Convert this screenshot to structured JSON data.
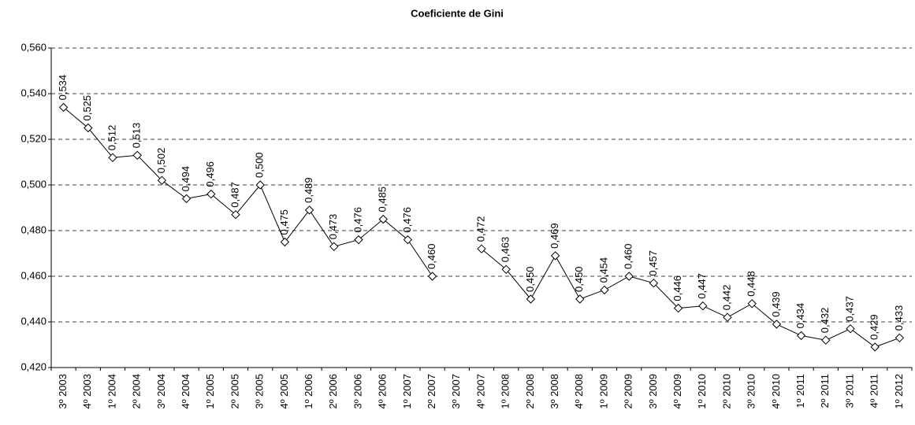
{
  "chart_data": {
    "type": "line",
    "title": "Coeficiente de Gini",
    "categories": [
      "3º 2003",
      "4º 2003",
      "1º 2004",
      "2º 2004",
      "3º 2004",
      "4º 2004",
      "1º 2005",
      "2º 2005",
      "3º 2005",
      "4º 2005",
      "1º 2006",
      "2º 2006",
      "3º 2006",
      "4º 2006",
      "1º 2007",
      "2º 2007",
      "3º 2007",
      "4º 2007",
      "1º 2008",
      "2º 2008",
      "3º 2008",
      "4º 2008",
      "1º 2009",
      "2º 2009",
      "3º 2009",
      "4º 2009",
      "1º 2010",
      "2º 2010",
      "3º 2010",
      "4º 2010",
      "1º 2011",
      "2º 2011",
      "3º 2011",
      "4º 2011",
      "1º 2012"
    ],
    "values": [
      0.534,
      0.525,
      0.512,
      0.513,
      0.502,
      0.494,
      0.496,
      0.487,
      0.5,
      0.475,
      0.489,
      0.473,
      0.476,
      0.485,
      0.476,
      0.46,
      null,
      0.472,
      0.463,
      0.45,
      0.469,
      0.45,
      0.454,
      0.46,
      0.457,
      0.446,
      0.447,
      0.442,
      0.448,
      0.439,
      0.434,
      0.432,
      0.437,
      0.429,
      0.433
    ],
    "value_labels": [
      "0,534",
      "0,525",
      "0,512",
      "0,513",
      "0,502",
      "0,494",
      "0,496",
      "0,487",
      "0,500",
      "0,475",
      "0,489",
      "0,473",
      "0,476",
      "0,485",
      "0,476",
      "0,460",
      null,
      "0,472",
      "0,463",
      "0,450",
      "0,469",
      "0,450",
      "0,454",
      "0,460",
      "0,457",
      "0,446",
      "0,447",
      "0,442",
      "0,448",
      "0,439",
      "0,434",
      "0,432",
      "0,437",
      "0,429",
      "0,433"
    ],
    "color": "#000000",
    "ylim": [
      0.42,
      0.56
    ],
    "yticks": [
      {
        "value": 0.42,
        "label": "0,420"
      },
      {
        "value": 0.44,
        "label": "0,440"
      },
      {
        "value": 0.46,
        "label": "0,460"
      },
      {
        "value": 0.48,
        "label": "0,480"
      },
      {
        "value": 0.5,
        "label": "0,500"
      },
      {
        "value": 0.52,
        "label": "0,520"
      },
      {
        "value": 0.54,
        "label": "0,540"
      },
      {
        "value": 0.56,
        "label": "0,560"
      }
    ],
    "grid": true
  }
}
